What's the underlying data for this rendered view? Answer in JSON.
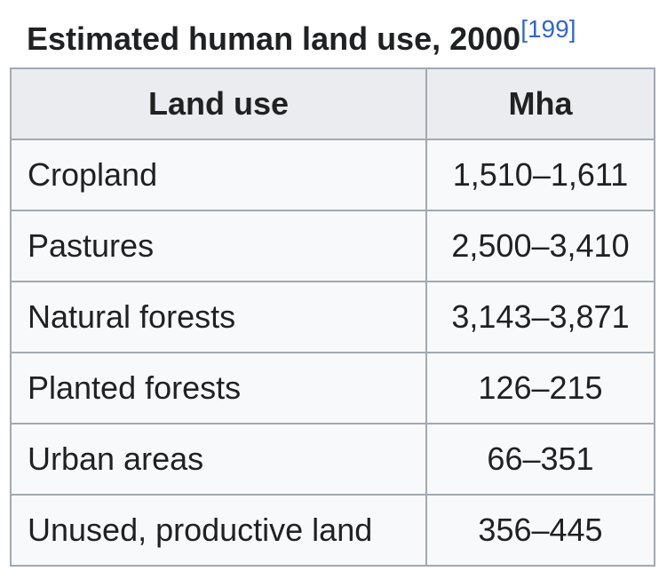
{
  "caption": {
    "title": "Estimated human land use, 2000",
    "reference": "[199]"
  },
  "table": {
    "headers": [
      "Land use",
      "Mha"
    ],
    "rows": [
      {
        "land_use": "Cropland",
        "mha": "1,510–1,611"
      },
      {
        "land_use": "Pastures",
        "mha": "2,500–3,410"
      },
      {
        "land_use": "Natural forests",
        "mha": "3,143–3,871"
      },
      {
        "land_use": "Planted forests",
        "mha": "126–215"
      },
      {
        "land_use": "Urban areas",
        "mha": "66–351"
      },
      {
        "land_use": "Unused, productive land",
        "mha": "356–445"
      }
    ]
  },
  "colors": {
    "text": "#202122",
    "link": "#3366cc",
    "header_bg": "#eaecf0",
    "cell_bg": "#f8f9fa",
    "border": "#a2a9b1"
  }
}
